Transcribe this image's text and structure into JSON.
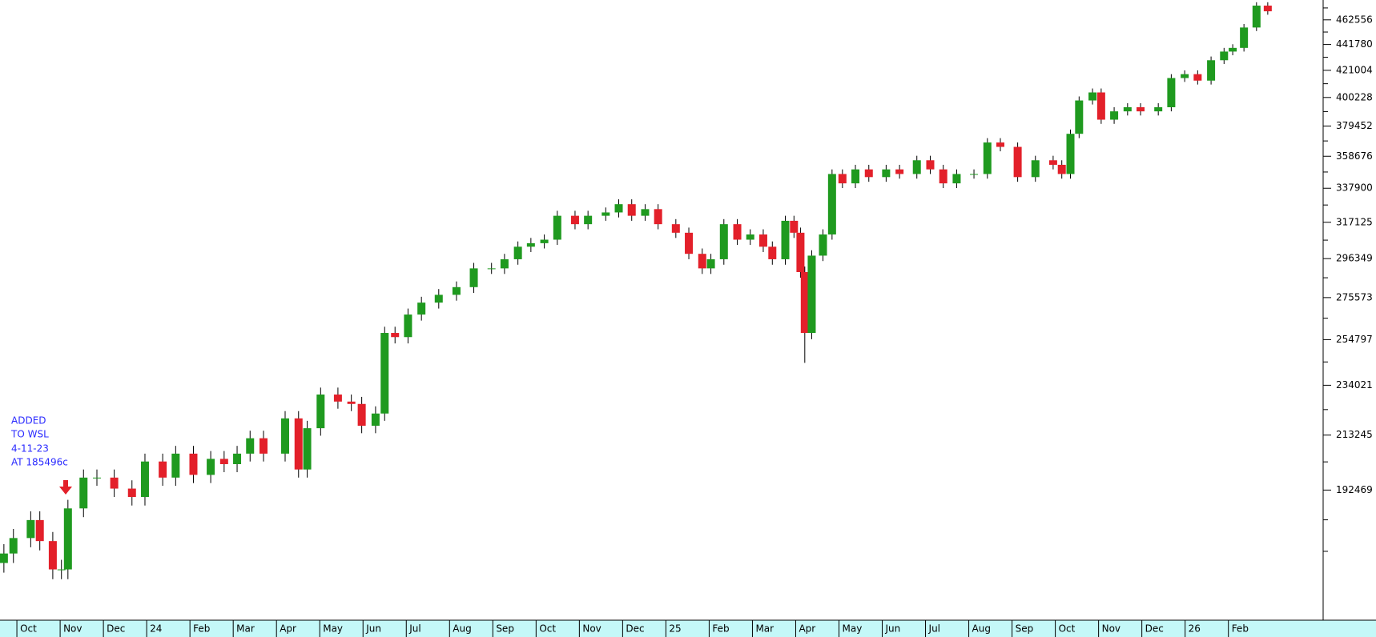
{
  "chart_data": {
    "type": "candlestick",
    "annotation": [
      "ADDED",
      "TO WSL",
      "4-11-23",
      "AT 185496c"
    ],
    "up_color": "#1f9a1f",
    "down_color": "#e3202a",
    "wick_color": "#000000",
    "axis_strip_color": "#c4f8f8",
    "ylog": true,
    "xlim": [
      -0.39,
      30.19
    ],
    "ylim": [
      151000,
      480000
    ],
    "xticks": [
      {
        "value": 0,
        "label": "Oct"
      },
      {
        "value": 1,
        "label": "Nov"
      },
      {
        "value": 2,
        "label": "Dec"
      },
      {
        "value": 3,
        "label": "24"
      },
      {
        "value": 4,
        "label": "Feb"
      },
      {
        "value": 5,
        "label": "Mar"
      },
      {
        "value": 6,
        "label": "Apr"
      },
      {
        "value": 7,
        "label": "May"
      },
      {
        "value": 8,
        "label": "Jun"
      },
      {
        "value": 9,
        "label": "Jul"
      },
      {
        "value": 10,
        "label": "Aug"
      },
      {
        "value": 11,
        "label": "Sep"
      },
      {
        "value": 12,
        "label": "Oct"
      },
      {
        "value": 13,
        "label": "Nov"
      },
      {
        "value": 14,
        "label": "Dec"
      },
      {
        "value": 15,
        "label": "25"
      },
      {
        "value": 16,
        "label": "Feb"
      },
      {
        "value": 17,
        "label": "Mar"
      },
      {
        "value": 18,
        "label": "Apr"
      },
      {
        "value": 19,
        "label": "May"
      },
      {
        "value": 20,
        "label": "Jun"
      },
      {
        "value": 21,
        "label": "Jul"
      },
      {
        "value": 22,
        "label": "Aug"
      },
      {
        "value": 23,
        "label": "Sep"
      },
      {
        "value": 24,
        "label": "Oct"
      },
      {
        "value": 25,
        "label": "Nov"
      },
      {
        "value": 26,
        "label": "Dec"
      },
      {
        "value": 27,
        "label": "26"
      },
      {
        "value": 28,
        "label": "Feb"
      }
    ],
    "yticks": [
      462556,
      441780,
      421004,
      400228,
      379452,
      358676,
      337900,
      317125,
      296349,
      275573,
      254797,
      234021,
      213245,
      192469
    ],
    "yminorticks": [
      472944,
      452168,
      431392,
      410616,
      389840,
      369064,
      348288,
      327512,
      306737,
      285961,
      265185,
      244409,
      223633,
      202857,
      182081,
      171693
    ],
    "x": [
      -0.3,
      -0.08,
      0.32,
      0.53,
      0.83,
      1.03,
      1.18,
      1.54,
      1.85,
      2.25,
      2.66,
      2.96,
      3.37,
      3.67,
      4.08,
      4.48,
      4.79,
      5.09,
      5.39,
      5.7,
      6.2,
      6.51,
      6.71,
      7.02,
      7.42,
      7.73,
      7.97,
      8.29,
      8.5,
      8.74,
      9.04,
      9.35,
      9.75,
      10.16,
      10.56,
      10.97,
      11.27,
      11.58,
      11.88,
      12.19,
      12.49,
      12.9,
      13.2,
      13.61,
      13.91,
      14.21,
      14.52,
      14.82,
      15.23,
      15.53,
      15.84,
      16.04,
      16.34,
      16.65,
      16.95,
      17.25,
      17.46,
      17.76,
      17.96,
      18.11,
      18.21,
      18.37,
      18.63,
      18.84,
      19.08,
      19.38,
      19.69,
      20.09,
      20.4,
      20.8,
      21.11,
      21.41,
      21.72,
      22.12,
      22.43,
      22.73,
      23.13,
      23.54,
      23.95,
      24.15,
      24.35,
      24.55,
      24.86,
      25.06,
      25.36,
      25.67,
      25.97,
      26.38,
      26.68,
      26.99,
      27.29,
      27.6,
      27.9,
      28.1,
      28.36,
      28.65,
      28.91
    ],
    "open": [
      168000,
      171000,
      176000,
      182000,
      175000,
      166000,
      166000,
      186000,
      197000,
      197000,
      193000,
      190000,
      203000,
      197000,
      206000,
      198000,
      204000,
      202000,
      206000,
      212000,
      206000,
      220000,
      200000,
      216000,
      230000,
      227000,
      226000,
      217000,
      222000,
      258000,
      256000,
      267000,
      273000,
      277000,
      281000,
      291000,
      291000,
      296000,
      303000,
      305000,
      307000,
      321000,
      316000,
      321000,
      323000,
      328000,
      321000,
      325000,
      316000,
      311000,
      299000,
      291000,
      296000,
      316000,
      307000,
      310000,
      303000,
      296000,
      318000,
      311000,
      289000,
      258000,
      298000,
      310000,
      347000,
      341000,
      350000,
      345000,
      350000,
      347000,
      356000,
      350000,
      341000,
      347000,
      347000,
      368000,
      365000,
      345000,
      356000,
      353000,
      347000,
      374000,
      398000,
      404000,
      384000,
      390000,
      393000,
      390000,
      393000,
      415000,
      418000,
      413000,
      429000,
      436000,
      439000,
      456000,
      475000
    ],
    "high": [
      174000,
      179000,
      185000,
      185000,
      178000,
      169000,
      189000,
      200000,
      200000,
      200000,
      196000,
      206000,
      206000,
      209000,
      209000,
      207000,
      207000,
      209000,
      215000,
      215000,
      223000,
      223000,
      219000,
      233000,
      233000,
      230000,
      229000,
      225000,
      261000,
      261000,
      270000,
      276000,
      280000,
      284000,
      294000,
      294000,
      299000,
      306000,
      308000,
      310000,
      324000,
      324000,
      324000,
      326000,
      331000,
      331000,
      328000,
      328000,
      319000,
      314000,
      302000,
      299000,
      319000,
      319000,
      313000,
      313000,
      306000,
      321000,
      321000,
      314000,
      292000,
      301000,
      313000,
      350000,
      350000,
      353000,
      353000,
      353000,
      353000,
      359000,
      359000,
      353000,
      350000,
      350000,
      371000,
      371000,
      368000,
      359000,
      359000,
      356000,
      377000,
      401000,
      407000,
      407000,
      393000,
      396000,
      396000,
      396000,
      418000,
      421000,
      421000,
      432000,
      439000,
      442000,
      459000,
      478000,
      478000
    ],
    "low": [
      165000,
      168000,
      173000,
      172000,
      163000,
      163000,
      163000,
      183000,
      194000,
      190000,
      187000,
      187000,
      194000,
      194000,
      195000,
      195000,
      199000,
      199000,
      203000,
      203000,
      203000,
      197000,
      197000,
      213000,
      224000,
      223000,
      214000,
      214000,
      219000,
      253000,
      253000,
      264000,
      270000,
      274000,
      278000,
      288000,
      288000,
      293000,
      300000,
      302000,
      304000,
      313000,
      313000,
      318000,
      320000,
      318000,
      318000,
      313000,
      308000,
      296000,
      288000,
      288000,
      293000,
      304000,
      304000,
      300000,
      293000,
      293000,
      308000,
      286000,
      244000,
      255000,
      295000,
      307000,
      338000,
      338000,
      342000,
      342000,
      344000,
      344000,
      347000,
      338000,
      338000,
      344000,
      344000,
      362000,
      342000,
      342000,
      350000,
      344000,
      344000,
      371000,
      395000,
      381000,
      381000,
      387000,
      387000,
      387000,
      390000,
      412000,
      410000,
      410000,
      426000,
      433000,
      436000,
      453000,
      467000
    ],
    "close": [
      171000,
      176000,
      182000,
      175000,
      166000,
      166000,
      186000,
      197000,
      197000,
      193000,
      190000,
      203000,
      197000,
      206000,
      198000,
      204000,
      202000,
      206000,
      212000,
      206000,
      220000,
      200000,
      216000,
      230000,
      227000,
      226000,
      217000,
      222000,
      258000,
      256000,
      267000,
      273000,
      277000,
      281000,
      291000,
      291000,
      296000,
      303000,
      305000,
      307000,
      321000,
      316000,
      321000,
      323000,
      328000,
      321000,
      325000,
      316000,
      311000,
      299000,
      291000,
      296000,
      316000,
      307000,
      310000,
      303000,
      296000,
      318000,
      311000,
      289000,
      258000,
      298000,
      310000,
      347000,
      341000,
      350000,
      345000,
      350000,
      347000,
      356000,
      350000,
      341000,
      347000,
      347000,
      368000,
      365000,
      345000,
      356000,
      353000,
      347000,
      374000,
      398000,
      404000,
      384000,
      390000,
      393000,
      390000,
      393000,
      415000,
      418000,
      413000,
      429000,
      436000,
      439000,
      456000,
      475000,
      470000
    ]
  }
}
